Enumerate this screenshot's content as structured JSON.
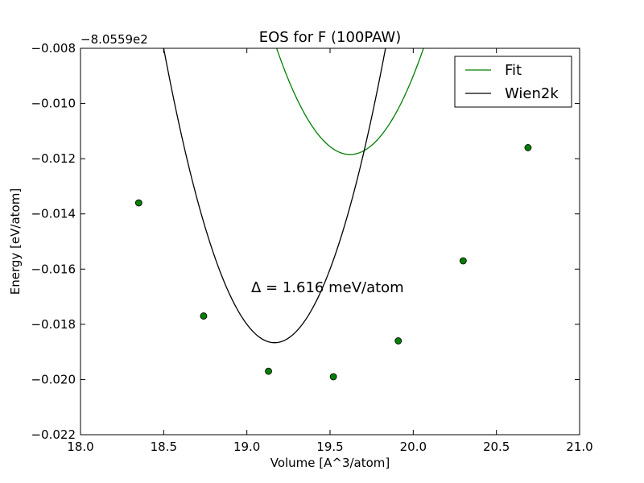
{
  "chart_data": {
    "type": "line",
    "title": "EOS for F (100PAW)",
    "xlabel": "Volume [A^3/atom]",
    "ylabel": "Energy [eV/atom]",
    "offset_label": "−8.0559e2",
    "xlim": [
      18.0,
      21.0
    ],
    "ylim": [
      -0.022,
      -0.008
    ],
    "x_ticks": [
      18.0,
      18.5,
      19.0,
      19.5,
      20.0,
      20.5,
      21.0
    ],
    "x_tick_labels": [
      "18.0",
      "18.5",
      "19.0",
      "19.5",
      "20.0",
      "20.5",
      "21.0"
    ],
    "y_ticks": [
      -0.022,
      -0.02,
      -0.018,
      -0.016,
      -0.014,
      -0.012,
      -0.01,
      -0.008
    ],
    "y_tick_labels": [
      "−0.022",
      "−0.020",
      "−0.018",
      "−0.016",
      "−0.014",
      "−0.012",
      "−0.010",
      "−0.008"
    ],
    "grid": false,
    "legend_position": "top-right",
    "annotation": "Δ = 1.616 meV/atom",
    "series": [
      {
        "name": "Fit",
        "kind": "fit-curve",
        "color": "#008000",
        "coeffs": [
          0.01975,
          -0.775,
          7.591
        ],
        "x_range": [
          18.35,
          20.7
        ]
      },
      {
        "name": "Wien2k",
        "kind": "curve",
        "color": "#000000",
        "coeffs": [
          0.024,
          -0.92,
          8.798
        ],
        "x_range": [
          18.35,
          20.7
        ]
      }
    ],
    "points": {
      "color": "#008000",
      "x": [
        18.35,
        18.74,
        19.13,
        19.52,
        19.91,
        20.3,
        20.69
      ],
      "y": [
        -0.0136,
        -0.0177,
        -0.0197,
        -0.0199,
        -0.0186,
        -0.0157,
        -0.0116
      ]
    }
  }
}
